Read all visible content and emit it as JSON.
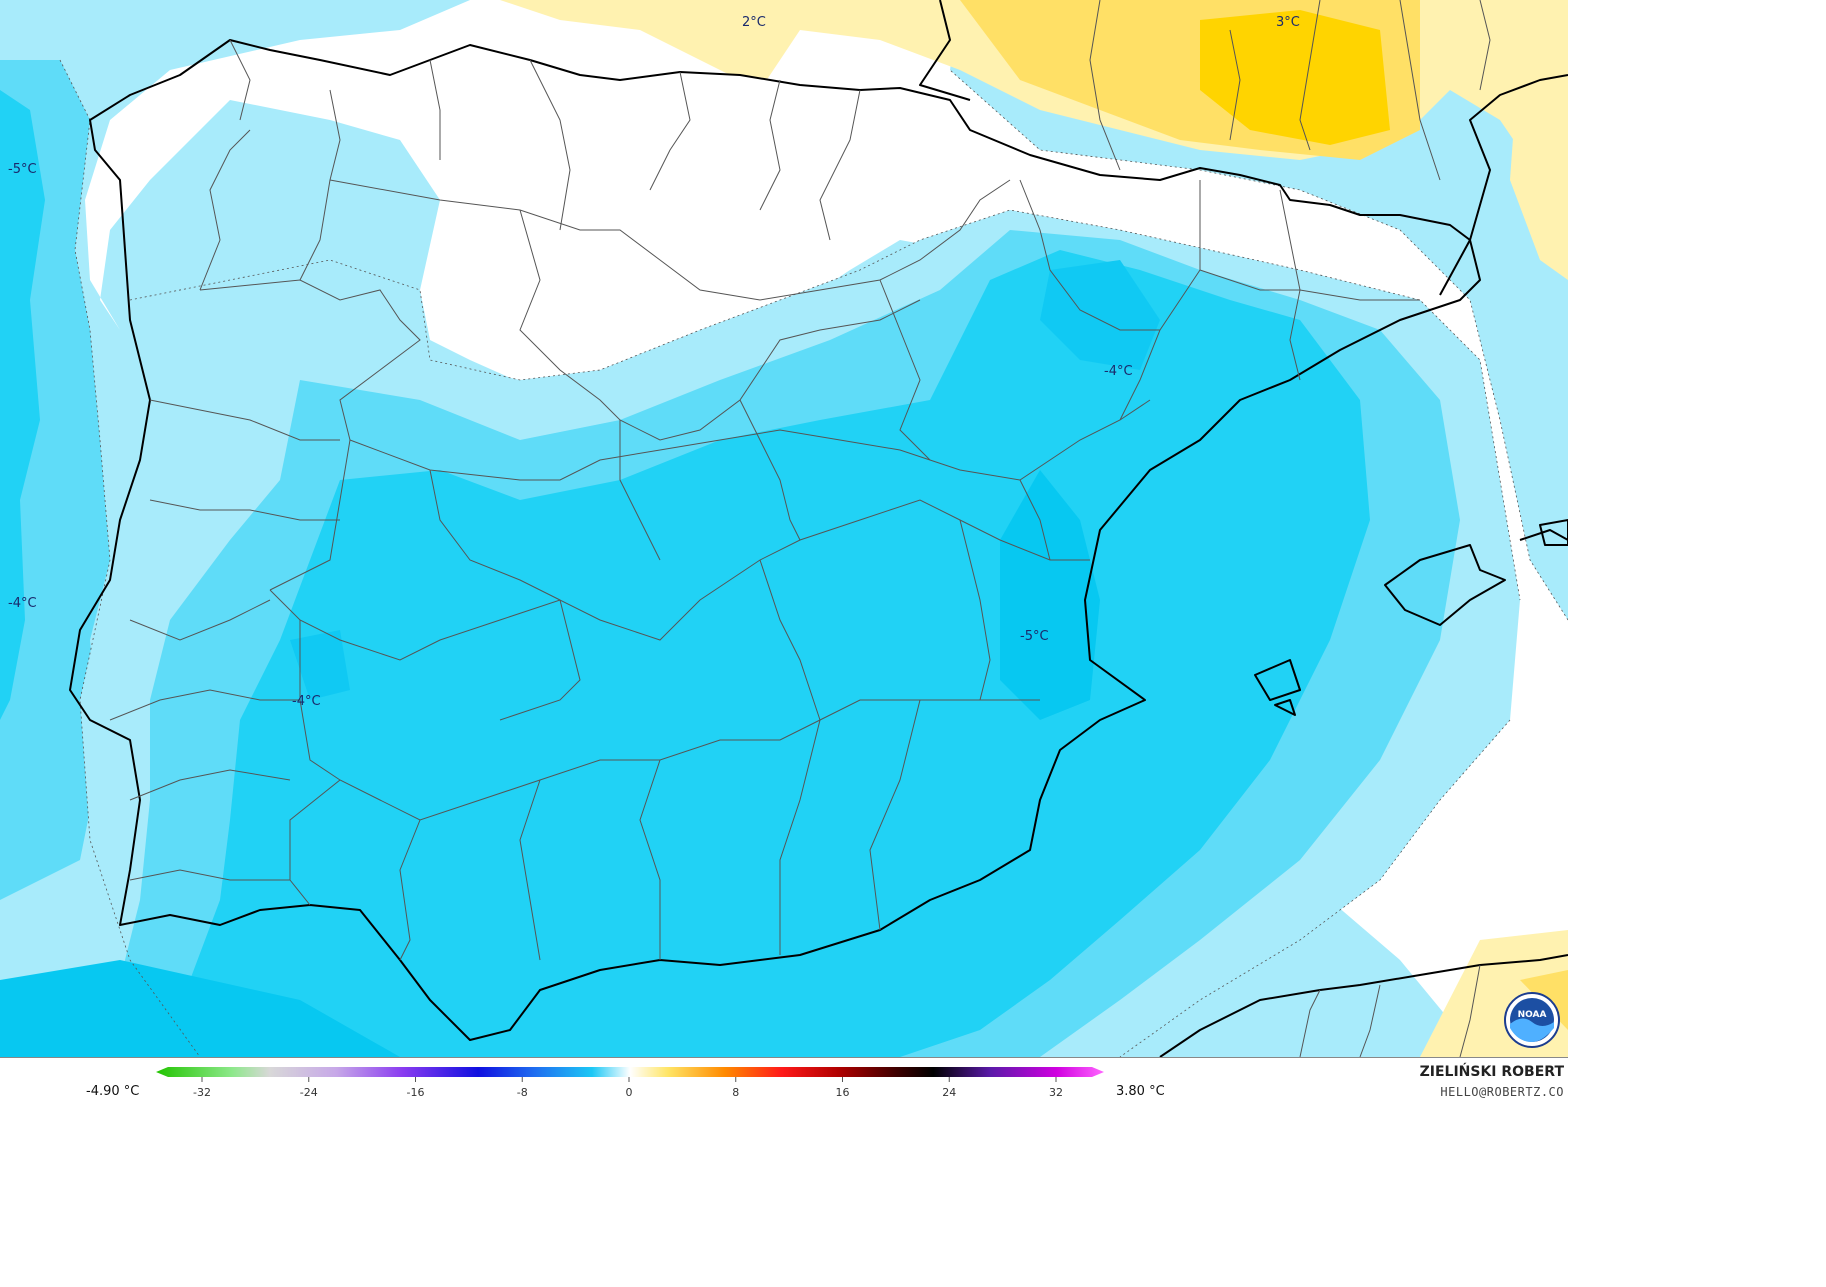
{
  "map": {
    "isotherm_labels": [
      {
        "text": "2°C"
      },
      {
        "text": "3°C"
      },
      {
        "text": "-5°C"
      },
      {
        "text": "-4°C"
      },
      {
        "text": "-4°C"
      },
      {
        "text": "-5°C"
      },
      {
        "text": "-4°C"
      }
    ],
    "colors": {
      "sea_light": "#a8ebfb",
      "cold_mid": "#5fdcf8",
      "cold_deep": "#21d2f5",
      "cold_core": "#07c8f1",
      "neutral": "#ffffff",
      "warm_light": "#fff2b0",
      "warm_mid": "#ffe066",
      "warm_deep": "#ffd400"
    },
    "logo": {
      "icon": "noaa-logo-icon",
      "text": "NOAA"
    }
  },
  "footer": {
    "min_value": "-4.90 °C",
    "max_value": "3.80 °C",
    "scale_ticks": [
      "-32",
      "-24",
      "-16",
      "-8",
      "0",
      "8",
      "16",
      "24",
      "32"
    ],
    "author": "ZIELIŃSKI ROBERT",
    "email": "HELLO@ROBERTZ.CO"
  }
}
